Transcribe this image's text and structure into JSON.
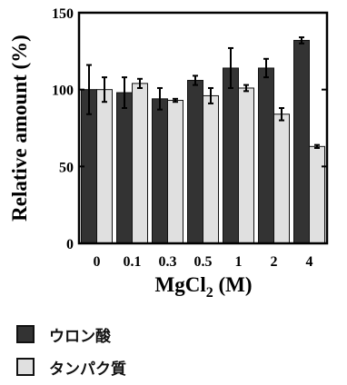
{
  "chart_data": {
    "type": "bar",
    "categories": [
      "0",
      "0.1",
      "0.3",
      "0.5",
      "1",
      "2",
      "4"
    ],
    "series": [
      {
        "name": "ウロン酸",
        "color": "#333333",
        "values": [
          100,
          98,
          94,
          106,
          114,
          114,
          132
        ],
        "errors": [
          16,
          10,
          7,
          3,
          13,
          6,
          2
        ]
      },
      {
        "name": "タンパク質",
        "color": "#e0e0e0",
        "values": [
          100,
          104,
          93,
          96,
          101,
          84,
          63
        ],
        "errors": [
          8,
          3,
          1,
          5,
          2,
          4,
          1
        ]
      }
    ],
    "title": "",
    "xlabel": "MgCl",
    "xlabel_sub": "2",
    "xlabel_suffix": " (M)",
    "ylabel": "Relative amount (%)",
    "ylim": [
      0,
      150
    ],
    "yticks": [
      "0",
      "50",
      "100",
      "150"
    ],
    "grid": false,
    "legend_position": "bottom-left"
  }
}
